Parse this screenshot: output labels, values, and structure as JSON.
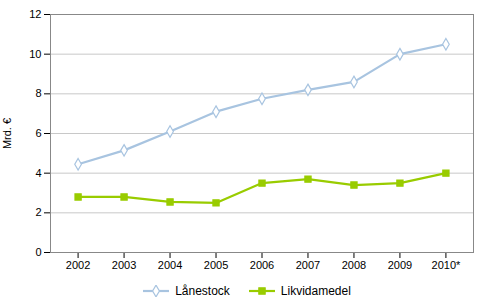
{
  "chart_data": {
    "type": "line",
    "x": [
      2002,
      2003,
      2004,
      2005,
      2006,
      2007,
      2008,
      2009,
      2010
    ],
    "series": [
      {
        "name": "Lånestock",
        "color": "#a8c4e0",
        "marker": "diamond",
        "values": [
          4.45,
          5.15,
          6.1,
          7.1,
          7.75,
          8.2,
          8.6,
          10.0,
          10.5
        ]
      },
      {
        "name": "Likvidamedel",
        "color": "#99cc00",
        "marker": "square",
        "values": [
          2.8,
          2.8,
          2.55,
          2.5,
          3.5,
          3.7,
          3.4,
          3.5,
          4.0
        ]
      }
    ],
    "ylabel": "Mrd. €",
    "xlim": [
      2001.4,
      2010.6
    ],
    "xticks": [
      2002,
      2003,
      2004,
      2005,
      2006,
      2007,
      2008,
      2009,
      {
        "value": 2010,
        "label": "2010*"
      }
    ],
    "ylim": [
      0,
      12
    ],
    "yticks": [
      0,
      2,
      4,
      6,
      8,
      10,
      12
    ],
    "grid": true,
    "legend": "bottom"
  }
}
